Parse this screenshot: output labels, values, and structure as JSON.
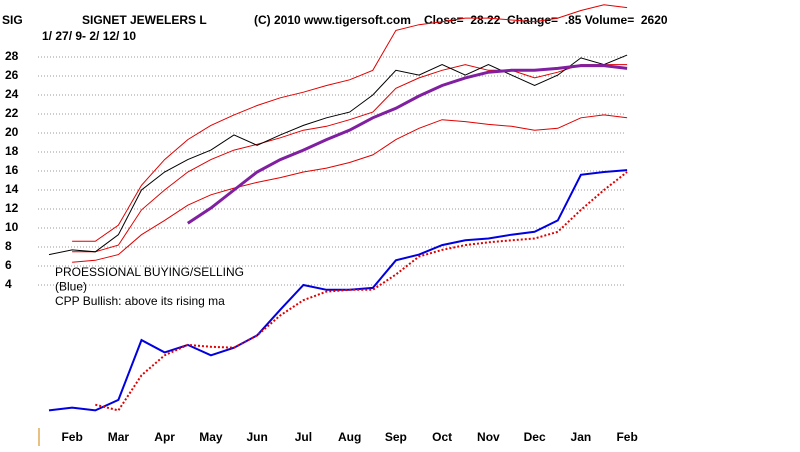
{
  "chart_data": {
    "type": "line",
    "symbol": "SIG",
    "title": "SIGNET JEWELERS L",
    "copyright": "(C) 2010 www.tigersoft.com",
    "quote": "Close=  28.22  Change=  .85 Volume=  2620",
    "subtitle": "1/ 27/ 9- 2/ 12/ 10",
    "annotations": [
      "PROESSIONAL BUYING/SELLING",
      "(Blue)",
      "CPP Bullish: above its rising ma"
    ],
    "categories": [
      null,
      "Feb",
      null,
      "Mar",
      null,
      "Apr",
      null,
      "May",
      null,
      "Jun",
      null,
      "Jul",
      null,
      "Aug",
      null,
      "Sep",
      null,
      "Oct",
      null,
      "Nov",
      null,
      "Dec",
      null,
      "Jan",
      null,
      "Feb"
    ],
    "ylim": [
      -12,
      34
    ],
    "yticks": [
      4,
      6,
      8,
      10,
      12,
      14,
      16,
      18,
      20,
      22,
      24,
      26,
      28
    ],
    "grid": true,
    "series": [
      {
        "color": "#e00000",
        "width": 1,
        "values": [
          null,
          8.6,
          8.6,
          10.3,
          14.5,
          17.2,
          19.3,
          20.8,
          21.9,
          22.9,
          23.7,
          24.3,
          25,
          25.6,
          26.6,
          30.8,
          31.4,
          31.7,
          32.1,
          32.1,
          31.9,
          31.7,
          32.1,
          32.9,
          33.5,
          33.2
        ]
      },
      {
        "color": "#e00000",
        "width": 1,
        "values": [
          null,
          6.4,
          6.6,
          7.2,
          9.3,
          10.8,
          12.4,
          13.5,
          14.2,
          14.8,
          15.3,
          15.9,
          16.3,
          16.9,
          17.7,
          19.3,
          20.5,
          21.4,
          21.2,
          20.9,
          20.7,
          20.3,
          20.5,
          21.6,
          21.9,
          21.6
        ]
      },
      {
        "color": "#e00000",
        "width": 1,
        "values": [
          null,
          7.5,
          7.5,
          8.2,
          11.9,
          14,
          15.9,
          17.2,
          18.2,
          18.8,
          19.5,
          20.3,
          20.7,
          21.4,
          22.2,
          24.7,
          25.8,
          26.6,
          27.2,
          26.6,
          26.6,
          25.8,
          26.4,
          27.2,
          27.2,
          27.2
        ]
      },
      {
        "color": "#000000",
        "width": 1,
        "values": [
          7.2,
          7.7,
          7.5,
          9.3,
          14,
          15.9,
          17.2,
          18.2,
          19.8,
          18.7,
          19.8,
          20.8,
          21.6,
          22.2,
          24,
          26.6,
          26.1,
          27.2,
          26.1,
          27.2,
          26.1,
          25,
          26.1,
          27.9,
          27.2,
          28.2
        ]
      },
      {
        "color": "#8020a0",
        "width": 3,
        "values": [
          null,
          null,
          null,
          null,
          null,
          null,
          10.5,
          12.1,
          14,
          15.9,
          17.2,
          18.2,
          19.3,
          20.3,
          21.6,
          22.6,
          23.9,
          25,
          25.8,
          26.4,
          26.6,
          26.6,
          26.8,
          27.1,
          27.1,
          26.8
        ]
      },
      {
        "color": "#0000e0",
        "width": 2,
        "values": [
          -9.2,
          -8.9,
          -9.2,
          -8.1,
          -1.8,
          -3.1,
          -2.3,
          -3.4,
          -2.6,
          -1.3,
          1.4,
          4,
          3.5,
          3.5,
          3.7,
          6.6,
          7.2,
          8.2,
          8.7,
          8.9,
          9.3,
          9.6,
          10.8,
          15.6,
          15.9,
          16.1
        ]
      },
      {
        "color": "#e00000",
        "width": 2,
        "dash": "dotted",
        "values": [
          null,
          null,
          -8.6,
          -9.2,
          -5.5,
          -3.4,
          -2.3,
          -2.5,
          -2.6,
          -1.3,
          0.8,
          2.4,
          3.3,
          3.5,
          3.5,
          5.1,
          7,
          7.7,
          8.2,
          8.5,
          8.7,
          8.9,
          9.6,
          11.9,
          14,
          15.9
        ]
      }
    ]
  }
}
